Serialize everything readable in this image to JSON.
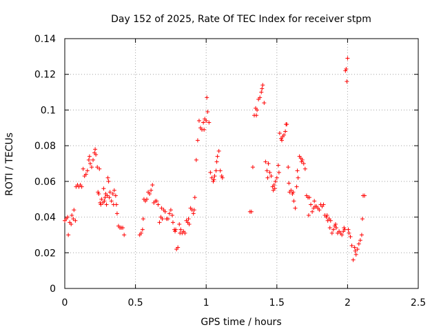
{
  "chart_data": {
    "type": "scatter",
    "title": "Day 152 of 2025, Rate Of TEC Index for receiver stpm",
    "xlabel": "GPS time / hours",
    "ylabel": "ROTI / TECUs",
    "xlim": [
      0,
      2.5
    ],
    "ylim": [
      0,
      0.14
    ],
    "x_ticks": [
      0,
      0.5,
      1,
      1.5,
      2,
      2.5
    ],
    "x_tick_labels": [
      "0",
      "0.5",
      "1",
      "1.5",
      "2",
      "2.5"
    ],
    "y_ticks": [
      0,
      0.02,
      0.04,
      0.06,
      0.08,
      0.1,
      0.12,
      0.14
    ],
    "y_tick_labels": [
      "0",
      "0.02",
      "0.04",
      "0.06",
      "0.08",
      "0.1",
      "0.12",
      "0.14"
    ],
    "grid": true,
    "marker": "+",
    "color": "#ff0000",
    "series": [
      {
        "name": "ROTI",
        "points": [
          [
            0.0,
            0.038
          ],
          [
            0.01,
            0.039
          ],
          [
            0.02,
            0.04
          ],
          [
            0.025,
            0.03
          ],
          [
            0.035,
            0.037
          ],
          [
            0.045,
            0.036
          ],
          [
            0.05,
            0.041
          ],
          [
            0.06,
            0.039
          ],
          [
            0.065,
            0.044
          ],
          [
            0.075,
            0.038
          ],
          [
            0.08,
            0.057
          ],
          [
            0.09,
            0.058
          ],
          [
            0.1,
            0.057
          ],
          [
            0.11,
            0.058
          ],
          [
            0.12,
            0.057
          ],
          [
            0.13,
            0.067
          ],
          [
            0.14,
            0.063
          ],
          [
            0.15,
            0.064
          ],
          [
            0.16,
            0.066
          ],
          [
            0.17,
            0.072
          ],
          [
            0.175,
            0.074
          ],
          [
            0.18,
            0.07
          ],
          [
            0.19,
            0.068
          ],
          [
            0.2,
            0.072
          ],
          [
            0.21,
            0.076
          ],
          [
            0.215,
            0.078
          ],
          [
            0.22,
            0.075
          ],
          [
            0.23,
            0.068
          ],
          [
            0.235,
            0.054
          ],
          [
            0.24,
            0.053
          ],
          [
            0.245,
            0.067
          ],
          [
            0.25,
            0.048
          ],
          [
            0.255,
            0.047
          ],
          [
            0.26,
            0.05
          ],
          [
            0.27,
            0.048
          ],
          [
            0.275,
            0.056
          ],
          [
            0.28,
            0.049
          ],
          [
            0.285,
            0.051
          ],
          [
            0.29,
            0.053
          ],
          [
            0.295,
            0.047
          ],
          [
            0.3,
            0.052
          ],
          [
            0.305,
            0.062
          ],
          [
            0.31,
            0.06
          ],
          [
            0.315,
            0.051
          ],
          [
            0.32,
            0.054
          ],
          [
            0.33,
            0.049
          ],
          [
            0.34,
            0.053
          ],
          [
            0.345,
            0.047
          ],
          [
            0.35,
            0.055
          ],
          [
            0.36,
            0.052
          ],
          [
            0.365,
            0.047
          ],
          [
            0.37,
            0.042
          ],
          [
            0.38,
            0.035
          ],
          [
            0.39,
            0.034
          ],
          [
            0.4,
            0.034
          ],
          [
            0.41,
            0.034
          ],
          [
            0.42,
            0.03
          ],
          [
            0.53,
            0.03
          ],
          [
            0.54,
            0.031
          ],
          [
            0.55,
            0.033
          ],
          [
            0.555,
            0.039
          ],
          [
            0.56,
            0.05
          ],
          [
            0.57,
            0.049
          ],
          [
            0.58,
            0.05
          ],
          [
            0.59,
            0.054
          ],
          [
            0.6,
            0.053
          ],
          [
            0.61,
            0.055
          ],
          [
            0.62,
            0.058
          ],
          [
            0.63,
            0.048
          ],
          [
            0.64,
            0.049
          ],
          [
            0.65,
            0.049
          ],
          [
            0.66,
            0.047
          ],
          [
            0.67,
            0.037
          ],
          [
            0.68,
            0.04
          ],
          [
            0.685,
            0.045
          ],
          [
            0.69,
            0.039
          ],
          [
            0.7,
            0.044
          ],
          [
            0.71,
            0.043
          ],
          [
            0.72,
            0.039
          ],
          [
            0.73,
            0.039
          ],
          [
            0.74,
            0.042
          ],
          [
            0.75,
            0.044
          ],
          [
            0.76,
            0.041
          ],
          [
            0.765,
            0.037
          ],
          [
            0.775,
            0.033
          ],
          [
            0.78,
            0.032
          ],
          [
            0.785,
            0.033
          ],
          [
            0.79,
            0.022
          ],
          [
            0.8,
            0.023
          ],
          [
            0.81,
            0.036
          ],
          [
            0.815,
            0.031
          ],
          [
            0.82,
            0.033
          ],
          [
            0.83,
            0.031
          ],
          [
            0.84,
            0.032
          ],
          [
            0.85,
            0.031
          ],
          [
            0.86,
            0.038
          ],
          [
            0.87,
            0.037
          ],
          [
            0.875,
            0.039
          ],
          [
            0.88,
            0.036
          ],
          [
            0.89,
            0.045
          ],
          [
            0.9,
            0.044
          ],
          [
            0.91,
            0.042
          ],
          [
            0.915,
            0.044
          ],
          [
            0.92,
            0.051
          ],
          [
            0.93,
            0.072
          ],
          [
            0.94,
            0.083
          ],
          [
            0.95,
            0.094
          ],
          [
            0.96,
            0.09
          ],
          [
            0.97,
            0.089
          ],
          [
            0.98,
            0.093
          ],
          [
            0.985,
            0.089
          ],
          [
            0.99,
            0.095
          ],
          [
            1.0,
            0.094
          ],
          [
            1.005,
            0.107
          ],
          [
            1.01,
            0.099
          ],
          [
            1.02,
            0.093
          ],
          [
            1.03,
            0.065
          ],
          [
            1.04,
            0.062
          ],
          [
            1.05,
            0.06
          ],
          [
            1.055,
            0.061
          ],
          [
            1.06,
            0.063
          ],
          [
            1.07,
            0.066
          ],
          [
            1.075,
            0.071
          ],
          [
            1.08,
            0.074
          ],
          [
            1.09,
            0.077
          ],
          [
            1.1,
            0.066
          ],
          [
            1.11,
            0.063
          ],
          [
            1.115,
            0.062
          ],
          [
            1.31,
            0.043
          ],
          [
            1.32,
            0.043
          ],
          [
            1.33,
            0.068
          ],
          [
            1.34,
            0.097
          ],
          [
            1.35,
            0.101
          ],
          [
            1.355,
            0.097
          ],
          [
            1.36,
            0.1
          ],
          [
            1.37,
            0.106
          ],
          [
            1.38,
            0.107
          ],
          [
            1.39,
            0.11
          ],
          [
            1.395,
            0.112
          ],
          [
            1.4,
            0.114
          ],
          [
            1.41,
            0.104
          ],
          [
            1.42,
            0.071
          ],
          [
            1.43,
            0.066
          ],
          [
            1.435,
            0.062
          ],
          [
            1.44,
            0.07
          ],
          [
            1.45,
            0.065
          ],
          [
            1.46,
            0.063
          ],
          [
            1.47,
            0.057
          ],
          [
            1.475,
            0.055
          ],
          [
            1.48,
            0.058
          ],
          [
            1.485,
            0.056
          ],
          [
            1.49,
            0.06
          ],
          [
            1.5,
            0.062
          ],
          [
            1.51,
            0.069
          ],
          [
            1.515,
            0.065
          ],
          [
            1.52,
            0.087
          ],
          [
            1.53,
            0.084
          ],
          [
            1.535,
            0.083
          ],
          [
            1.54,
            0.085
          ],
          [
            1.55,
            0.086
          ],
          [
            1.56,
            0.088
          ],
          [
            1.565,
            0.092
          ],
          [
            1.57,
            0.092
          ],
          [
            1.58,
            0.068
          ],
          [
            1.585,
            0.059
          ],
          [
            1.59,
            0.054
          ],
          [
            1.6,
            0.055
          ],
          [
            1.61,
            0.053
          ],
          [
            1.615,
            0.054
          ],
          [
            1.62,
            0.049
          ],
          [
            1.63,
            0.045
          ],
          [
            1.64,
            0.057
          ],
          [
            1.645,
            0.066
          ],
          [
            1.65,
            0.062
          ],
          [
            1.66,
            0.074
          ],
          [
            1.67,
            0.073
          ],
          [
            1.675,
            0.071
          ],
          [
            1.68,
            0.072
          ],
          [
            1.69,
            0.07
          ],
          [
            1.7,
            0.067
          ],
          [
            1.71,
            0.052
          ],
          [
            1.72,
            0.051
          ],
          [
            1.725,
            0.041
          ],
          [
            1.73,
            0.051
          ],
          [
            1.74,
            0.047
          ],
          [
            1.75,
            0.043
          ],
          [
            1.76,
            0.045
          ],
          [
            1.765,
            0.049
          ],
          [
            1.77,
            0.046
          ],
          [
            1.78,
            0.046
          ],
          [
            1.79,
            0.045
          ],
          [
            1.8,
            0.044
          ],
          [
            1.81,
            0.047
          ],
          [
            1.82,
            0.046
          ],
          [
            1.83,
            0.047
          ],
          [
            1.84,
            0.041
          ],
          [
            1.85,
            0.04
          ],
          [
            1.855,
            0.041
          ],
          [
            1.86,
            0.038
          ],
          [
            1.87,
            0.039
          ],
          [
            1.875,
            0.034
          ],
          [
            1.88,
            0.038
          ],
          [
            1.89,
            0.031
          ],
          [
            1.9,
            0.033
          ],
          [
            1.91,
            0.035
          ],
          [
            1.915,
            0.036
          ],
          [
            1.92,
            0.034
          ],
          [
            1.93,
            0.031
          ],
          [
            1.94,
            0.032
          ],
          [
            1.95,
            0.031
          ],
          [
            1.96,
            0.03
          ],
          [
            1.97,
            0.032
          ],
          [
            1.975,
            0.034
          ],
          [
            1.98,
            0.033
          ],
          [
            1.985,
            0.122
          ],
          [
            1.99,
            0.123
          ],
          [
            1.995,
            0.116
          ],
          [
            2.0,
            0.129
          ],
          [
            2.005,
            0.033
          ],
          [
            2.01,
            0.031
          ],
          [
            2.02,
            0.029
          ],
          [
            2.03,
            0.024
          ],
          [
            2.04,
            0.016
          ],
          [
            2.05,
            0.023
          ],
          [
            2.055,
            0.021
          ],
          [
            2.06,
            0.019
          ],
          [
            2.07,
            0.022
          ],
          [
            2.08,
            0.025
          ],
          [
            2.09,
            0.027
          ],
          [
            2.1,
            0.03
          ],
          [
            2.105,
            0.039
          ],
          [
            2.11,
            0.052
          ],
          [
            2.12,
            0.052
          ]
        ]
      }
    ]
  }
}
